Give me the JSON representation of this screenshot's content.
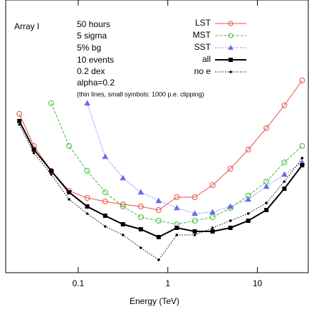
{
  "chart_data": {
    "type": "line",
    "x_label": "Energy (TeV)",
    "annotations": [
      "Array I",
      "50 hours",
      "5 sigma",
      "5% bg",
      "10 events",
      "0.2 dex",
      "alpha=0.2",
      "(thin lines, small symbols: 1000 p.e. clipping)"
    ],
    "log_x": true,
    "xlim": [
      0.0155,
      37
    ],
    "xticks": [
      0.1,
      1,
      10
    ],
    "ylim": [
      0,
      383
    ],
    "legend": "top right",
    "series": [
      {
        "name": "LST",
        "color": "#e8514a",
        "marker": "circle",
        "dash": "solid",
        "x": [
          0.022,
          0.032,
          0.05,
          0.079,
          0.126,
          0.2,
          0.316,
          0.5,
          0.79,
          1.26,
          2.0,
          3.16,
          5.0,
          7.9,
          12.6,
          20,
          31.6
        ],
        "values": [
          223,
          178,
          143,
          115,
          105,
          100,
          96,
          93,
          88,
          106,
          106,
          123,
          146,
          173,
          203,
          235,
          270
        ]
      },
      {
        "name": "MST",
        "color": "#3fbf3f",
        "marker": "circle",
        "dash": "dashed",
        "x": [
          0.05,
          0.079,
          0.126,
          0.2,
          0.316,
          0.5,
          0.79,
          1.26,
          2.0,
          3.16,
          5.0,
          7.9,
          12.6,
          20,
          31.6
        ],
        "values": [
          238,
          178,
          143,
          113,
          93,
          78,
          73,
          68,
          73,
          78,
          91,
          108,
          128,
          155,
          178
        ]
      },
      {
        "name": "SST",
        "color": "#6b6bf0",
        "marker": "triangle",
        "dash": "dotted",
        "x": [
          0.126,
          0.2,
          0.316,
          0.5,
          0.79,
          1.26,
          2.0,
          3.16,
          5.0,
          7.9,
          12.6,
          20,
          31.6
        ],
        "values": [
          238,
          163,
          133,
          113,
          101,
          91,
          83,
          85,
          93,
          103,
          121,
          138,
          155
        ]
      },
      {
        "name": "all",
        "color": "#000000",
        "marker": "square",
        "dash": "solid",
        "x": [
          0.022,
          0.032,
          0.05,
          0.079,
          0.126,
          0.2,
          0.316,
          0.5,
          0.79,
          1.26,
          2.0,
          3.16,
          5.0,
          7.9,
          12.6,
          20,
          31.6
        ],
        "values": [
          213,
          173,
          143,
          113,
          93,
          80,
          68,
          61,
          50,
          63,
          58,
          58,
          63,
          73,
          88,
          118,
          151
        ]
      },
      {
        "name": "no e",
        "color": "#000000",
        "marker": "dot",
        "dash": "dotted",
        "x": [
          0.022,
          0.032,
          0.05,
          0.079,
          0.126,
          0.2,
          0.316,
          0.5,
          0.79,
          1.26,
          2.0,
          3.16,
          5.0,
          7.9,
          12.6,
          20,
          31.6
        ],
        "values": [
          208,
          168,
          138,
          103,
          83,
          65,
          53,
          35,
          18,
          53,
          53,
          63,
          73,
          83,
          98,
          128,
          161
        ]
      }
    ]
  }
}
